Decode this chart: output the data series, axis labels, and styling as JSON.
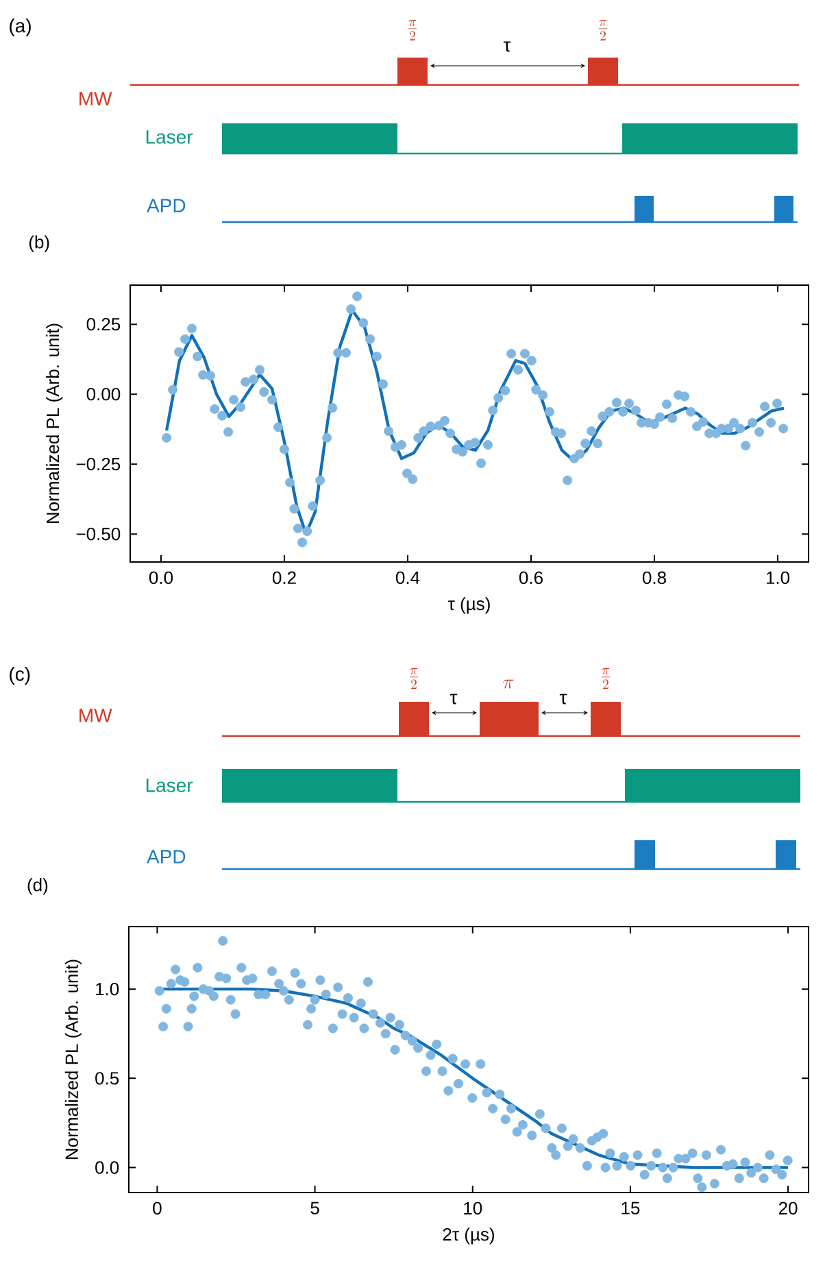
{
  "chart_data": [
    {
      "type": "other",
      "annotations": [
        "(a)",
        "MW",
        "Laser",
        "APD",
        "\\frac{\\pi}{2}",
        "\\frac{\\pi}{2}",
        "τ"
      ]
    },
    {
      "type": "scatter",
      "title": "(b)",
      "xlabel": "τ (µs)",
      "ylabel": "Normalized PL (Arb. unit)",
      "xlim": [
        -0.05,
        1.05
      ],
      "ylim": [
        -0.6,
        0.39
      ],
      "xticks": [
        {
          "value": 0,
          "label": "0.0"
        },
        {
          "value": 0.2,
          "label": "0.2"
        },
        {
          "value": 0.4,
          "label": "0.4"
        },
        {
          "value": 0.6,
          "label": "0.6"
        },
        {
          "value": 0.8,
          "label": "0.8"
        },
        {
          "value": 1,
          "label": "1.0"
        }
      ],
      "yticks": [
        {
          "value": -0.5,
          "label": "−0.50"
        },
        {
          "value": -0.25,
          "label": "−0.25"
        },
        {
          "value": 0,
          "label": "0.00"
        },
        {
          "value": 0.25,
          "label": "0.25"
        }
      ],
      "series": [
        {
          "type": "scatter",
          "marker": "circle",
          "color": "#80b6df",
          "x": [
            0.009,
            0.019,
            0.029,
            0.039,
            0.05,
            0.059,
            0.068,
            0.08,
            0.087,
            0.099,
            0.109,
            0.118,
            0.129,
            0.137,
            0.15,
            0.16,
            0.167,
            0.18,
            0.19,
            0.2,
            0.209,
            0.216,
            0.222,
            0.229,
            0.237,
            0.246,
            0.258,
            0.269,
            0.278,
            0.287,
            0.3,
            0.308,
            0.318,
            0.328,
            0.339,
            0.35,
            0.36,
            0.369,
            0.38,
            0.39,
            0.399,
            0.408,
            0.417,
            0.426,
            0.437,
            0.451,
            0.46,
            0.469,
            0.479,
            0.489,
            0.499,
            0.509,
            0.519,
            0.53,
            0.538,
            0.547,
            0.558,
            0.568,
            0.579,
            0.59,
            0.601,
            0.608,
            0.619,
            0.63,
            0.64,
            0.649,
            0.659,
            0.67,
            0.679,
            0.688,
            0.698,
            0.708,
            0.716,
            0.727,
            0.739,
            0.749,
            0.759,
            0.77,
            0.779,
            0.79,
            0.8,
            0.809,
            0.82,
            0.829,
            0.839,
            0.849,
            0.859,
            0.869,
            0.879,
            0.889,
            0.9,
            0.909,
            0.92,
            0.929,
            0.939,
            0.948,
            0.959,
            0.97,
            0.979,
            0.989,
            0.999,
            1.009
          ],
          "values": [
            -0.156,
            0.016,
            0.151,
            0.197,
            0.235,
            0.135,
            0.069,
            0.066,
            -0.053,
            -0.077,
            -0.135,
            -0.02,
            -0.046,
            0.044,
            0.053,
            0.087,
            0.008,
            -0.02,
            -0.118,
            -0.197,
            -0.316,
            -0.41,
            -0.48,
            -0.53,
            -0.49,
            -0.4,
            -0.308,
            -0.156,
            -0.049,
            0.148,
            0.148,
            0.304,
            0.35,
            0.255,
            0.197,
            0.135,
            0.036,
            -0.132,
            -0.189,
            -0.181,
            -0.283,
            -0.304,
            -0.156,
            -0.132,
            -0.115,
            -0.112,
            -0.095,
            -0.14,
            -0.197,
            -0.206,
            -0.181,
            -0.173,
            -0.247,
            -0.181,
            -0.058,
            -0.013,
            0.013,
            0.145,
            0.087,
            0.145,
            0.12,
            0.016,
            -0.003,
            -0.063,
            -0.135,
            -0.14,
            -0.308,
            -0.23,
            -0.214,
            -0.176,
            -0.132,
            -0.176,
            -0.079,
            -0.063,
            -0.03,
            -0.063,
            -0.033,
            -0.058,
            -0.102,
            -0.102,
            -0.107,
            -0.082,
            -0.036,
            -0.086,
            -0.003,
            -0.008,
            -0.063,
            -0.115,
            -0.099,
            -0.14,
            -0.14,
            -0.123,
            -0.123,
            -0.102,
            -0.123,
            -0.184,
            -0.102,
            -0.135,
            -0.044,
            -0.102,
            -0.033,
            -0.123
          ]
        },
        {
          "type": "line",
          "marker": "none",
          "color": "#1170b8",
          "x": [
            0.009,
            0.03,
            0.05,
            0.07,
            0.09,
            0.11,
            0.13,
            0.16,
            0.18,
            0.2,
            0.22,
            0.235,
            0.25,
            0.27,
            0.29,
            0.31,
            0.33,
            0.35,
            0.37,
            0.39,
            0.41,
            0.43,
            0.45,
            0.47,
            0.49,
            0.51,
            0.53,
            0.55,
            0.575,
            0.59,
            0.61,
            0.63,
            0.65,
            0.67,
            0.69,
            0.71,
            0.73,
            0.75,
            0.77,
            0.79,
            0.81,
            0.83,
            0.85,
            0.87,
            0.89,
            0.91,
            0.93,
            0.95,
            0.97,
            0.99,
            1.01
          ],
          "values": [
            -0.13,
            0.12,
            0.21,
            0.13,
            0.0,
            -0.08,
            -0.03,
            0.07,
            0.02,
            -0.17,
            -0.4,
            -0.5,
            -0.42,
            -0.1,
            0.17,
            0.3,
            0.24,
            0.08,
            -0.13,
            -0.23,
            -0.21,
            -0.14,
            -0.11,
            -0.14,
            -0.19,
            -0.2,
            -0.13,
            0.01,
            0.12,
            0.11,
            0.03,
            -0.1,
            -0.2,
            -0.24,
            -0.2,
            -0.12,
            -0.06,
            -0.05,
            -0.07,
            -0.1,
            -0.09,
            -0.07,
            -0.05,
            -0.07,
            -0.11,
            -0.14,
            -0.14,
            -0.12,
            -0.09,
            -0.06,
            -0.05
          ]
        }
      ]
    },
    {
      "type": "other",
      "annotations": [
        "(c)",
        "MW",
        "Laser",
        "APD",
        "\\frac{\\pi}{2}",
        "\\pi",
        "\\frac{\\pi}{2}",
        "τ",
        "τ"
      ]
    },
    {
      "type": "scatter",
      "title": "(d)",
      "xlabel": "2τ (µs)",
      "ylabel": "Normalized PL (Arb. unit)",
      "xlim": [
        -0.9,
        20.65
      ],
      "ylim": [
        -0.14,
        1.35
      ],
      "xticks": [
        0,
        5,
        10,
        15,
        20
      ],
      "yticks": [
        {
          "value": 0,
          "label": "0.0"
        },
        {
          "value": 0.5,
          "label": "0.5"
        },
        {
          "value": 1,
          "label": "1.0"
        }
      ],
      "series": [
        {
          "type": "scatter",
          "marker": "circle",
          "color": "#80b6df",
          "x": [
            0.07,
            0.19,
            0.29,
            0.44,
            0.58,
            0.73,
            0.87,
            0.98,
            1.09,
            1.17,
            1.28,
            1.46,
            1.65,
            1.79,
            1.97,
            2.08,
            2.19,
            2.33,
            2.48,
            2.67,
            2.84,
            3.02,
            3.21,
            3.43,
            3.64,
            3.86,
            4.01,
            4.18,
            4.37,
            4.56,
            4.77,
            4.88,
            5.0,
            5.17,
            5.35,
            5.57,
            5.73,
            5.87,
            6.05,
            6.24,
            6.46,
            6.56,
            6.68,
            6.85,
            7.07,
            7.24,
            7.39,
            7.54,
            7.68,
            7.87,
            8.09,
            8.27,
            8.53,
            8.67,
            8.86,
            9.04,
            9.23,
            9.37,
            9.55,
            9.77,
            9.99,
            10.25,
            10.45,
            10.64,
            10.86,
            11.04,
            11.22,
            11.41,
            11.59,
            11.88,
            12.13,
            12.32,
            12.51,
            12.64,
            12.83,
            13.02,
            13.19,
            13.41,
            13.63,
            13.78,
            13.95,
            14.14,
            14.21,
            14.36,
            14.58,
            14.8,
            15.01,
            15.23,
            15.45,
            15.66,
            15.84,
            16.03,
            16.17,
            16.36,
            16.53,
            16.75,
            16.97,
            17.14,
            17.27,
            17.41,
            17.67,
            17.87,
            18.06,
            18.25,
            18.45,
            18.64,
            18.83,
            19.04,
            19.23,
            19.42,
            19.62,
            19.81,
            19.99
          ],
          "values": [
            0.99,
            0.79,
            0.89,
            1.03,
            1.11,
            1.05,
            1.04,
            0.79,
            0.89,
            0.96,
            1.12,
            1.0,
            0.99,
            0.96,
            1.07,
            1.27,
            1.06,
            0.94,
            0.86,
            1.12,
            1.05,
            1.06,
            0.97,
            0.97,
            1.1,
            1.03,
            0.99,
            0.94,
            1.09,
            1.03,
            0.8,
            0.89,
            0.94,
            1.05,
            0.97,
            0.78,
            1.01,
            0.86,
            0.95,
            0.84,
            0.92,
            0.78,
            1.04,
            0.86,
            0.81,
            0.75,
            0.84,
            0.66,
            0.8,
            0.74,
            0.71,
            0.67,
            0.54,
            0.63,
            0.69,
            0.54,
            0.43,
            0.61,
            0.47,
            0.58,
            0.39,
            0.58,
            0.42,
            0.33,
            0.41,
            0.27,
            0.33,
            0.2,
            0.24,
            0.18,
            0.3,
            0.22,
            0.11,
            0.07,
            0.22,
            0.12,
            0.16,
            0.11,
            0.01,
            0.15,
            0.17,
            0.19,
            0.0,
            0.08,
            0.01,
            0.06,
            0.01,
            0.07,
            -0.04,
            0.01,
            0.08,
            0.0,
            -0.06,
            0.0,
            0.05,
            0.05,
            0.08,
            -0.06,
            -0.11,
            0.07,
            -0.09,
            0.1,
            0.01,
            0.02,
            -0.06,
            0.03,
            -0.03,
            0.0,
            -0.06,
            0.07,
            -0.01,
            -0.04,
            0.04
          ]
        },
        {
          "type": "line",
          "marker": "none",
          "color": "#1170b8",
          "x": [
            0,
            1,
            2,
            3,
            4,
            5,
            6,
            7,
            7.5,
            8,
            9,
            10,
            11,
            12,
            12.5,
            13,
            14,
            15,
            16,
            17,
            18,
            19,
            20
          ],
          "values": [
            1.0,
            1.0,
            1.0,
            1.0,
            0.99,
            0.96,
            0.92,
            0.84,
            0.78,
            0.74,
            0.63,
            0.5,
            0.38,
            0.26,
            0.19,
            0.15,
            0.07,
            0.02,
            0.01,
            0.0,
            0.0,
            0.0,
            0.0
          ]
        }
      ]
    }
  ]
}
